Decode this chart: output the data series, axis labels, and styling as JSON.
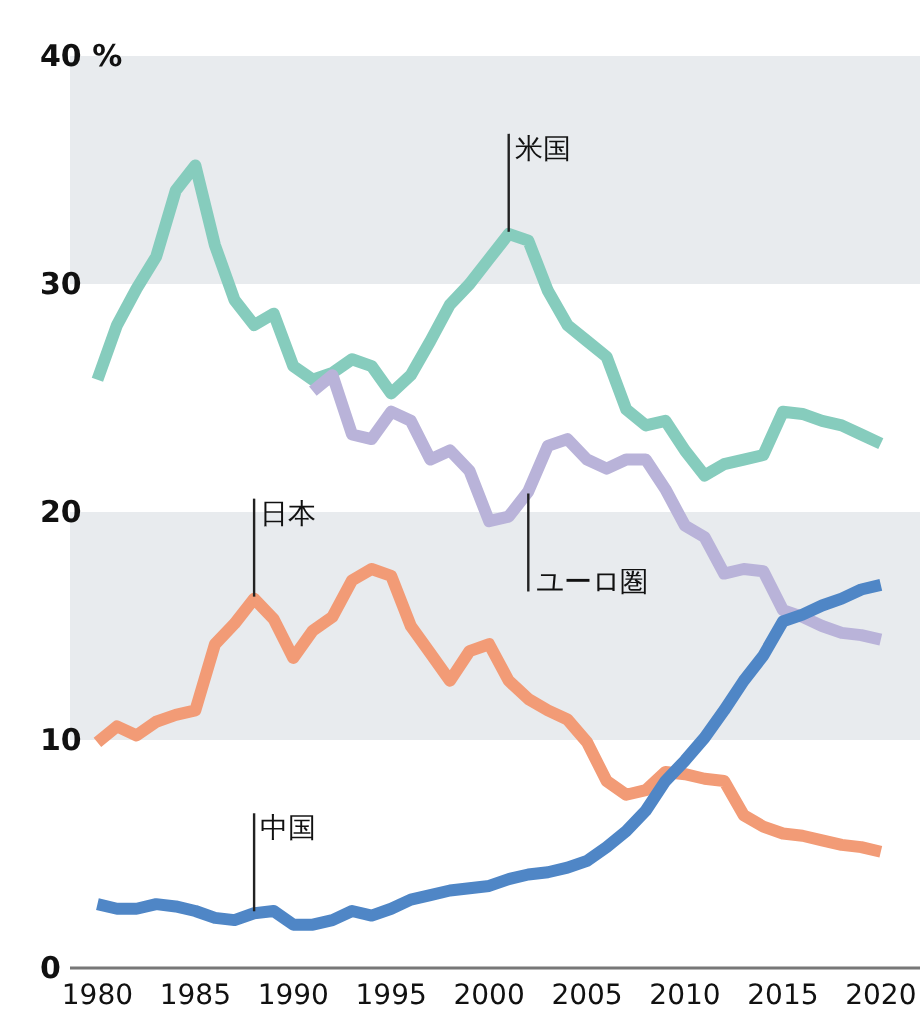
{
  "chart_data": {
    "type": "line",
    "x": [
      1980,
      1981,
      1982,
      1983,
      1984,
      1985,
      1986,
      1987,
      1988,
      1989,
      1990,
      1991,
      1992,
      1993,
      1994,
      1995,
      1996,
      1997,
      1998,
      1999,
      2000,
      2001,
      2002,
      2003,
      2004,
      2005,
      2006,
      2007,
      2008,
      2009,
      2010,
      2011,
      2012,
      2013,
      2014,
      2015,
      2016,
      2017,
      2018,
      2019,
      2020
    ],
    "series": [
      {
        "color": "#86ccbd",
        "values": [
          25.8,
          28.2,
          29.8,
          31.2,
          34.1,
          35.2,
          31.7,
          29.3,
          28.2,
          28.7,
          26.4,
          25.8,
          26.1,
          26.7,
          26.4,
          25.2,
          26,
          27.5,
          29.1,
          30,
          31.1,
          32.2,
          31.9,
          29.7,
          28.2,
          27.5,
          26.8,
          24.5,
          23.8,
          24,
          22.7,
          21.6,
          22.1,
          22.3,
          22.5,
          24.4,
          24.3,
          24,
          23.8,
          23.4,
          23
        ]
      },
      {
        "color": "#b9b3d9",
        "values": [
          null,
          null,
          null,
          null,
          null,
          null,
          null,
          null,
          null,
          null,
          null,
          25.3,
          26,
          23.4,
          23.2,
          24.4,
          24,
          22.3,
          22.7,
          21.8,
          19.6,
          19.8,
          20.9,
          22.9,
          23.2,
          22.3,
          21.9,
          22.3,
          22.3,
          21,
          19.4,
          18.9,
          17.3,
          17.5,
          17.4,
          15.7,
          15.4,
          15,
          14.7,
          14.6,
          14.4
        ]
      },
      {
        "color": "#f29b76",
        "values": [
          9.9,
          10.6,
          10.2,
          10.8,
          11.1,
          11.3,
          14.2,
          15.1,
          16.2,
          15.3,
          13.6,
          14.8,
          15.4,
          17,
          17.5,
          17.2,
          15,
          13.8,
          12.6,
          13.9,
          14.2,
          12.6,
          11.8,
          11.3,
          10.9,
          9.9,
          8.2,
          7.6,
          7.8,
          8.6,
          8.5,
          8.3,
          8.2,
          6.7,
          6.2,
          5.9,
          5.8,
          5.6,
          5.4,
          5.3,
          5.1
        ]
      },
      {
        "color": "#4f86c6",
        "values": [
          2.8,
          2.6,
          2.6,
          2.8,
          2.7,
          2.5,
          2.2,
          2.1,
          2.4,
          2.5,
          1.9,
          1.9,
          2.1,
          2.5,
          2.3,
          2.6,
          3,
          3.2,
          3.4,
          3.5,
          3.6,
          3.9,
          4.1,
          4.2,
          4.4,
          4.7,
          5.3,
          6,
          6.9,
          8.2,
          9.1,
          10.1,
          11.3,
          12.6,
          13.7,
          15.2,
          15.5,
          15.9,
          16.2,
          16.6,
          16.8
        ]
      }
    ],
    "xlim": [
      1978.6,
      2022
    ],
    "xticks": [
      1980,
      1985,
      1990,
      1995,
      2000,
      2005,
      2010,
      2015,
      2020
    ],
    "ylim": [
      0,
      40
    ],
    "yticks": [
      0,
      10,
      20,
      30,
      {
        "value": 40,
        "label": "40 %"
      }
    ],
    "bands": [
      {
        "axis": "y",
        "from": 10,
        "to": 20,
        "color": "#e8ebee"
      },
      {
        "axis": "y",
        "from": 30,
        "to": 40,
        "color": "#e8ebee"
      }
    ],
    "annotations": [
      {
        "text": "米国",
        "x": 2001,
        "y": 32.2
      },
      {
        "text": "ユーロ圏",
        "x": 2002,
        "y": 20.9
      },
      {
        "text": "日本",
        "x": 1988,
        "y": 16.2
      },
      {
        "text": "中国",
        "x": 1988,
        "y": 2.4
      }
    ],
    "marker": "none",
    "line_style": "solid"
  }
}
